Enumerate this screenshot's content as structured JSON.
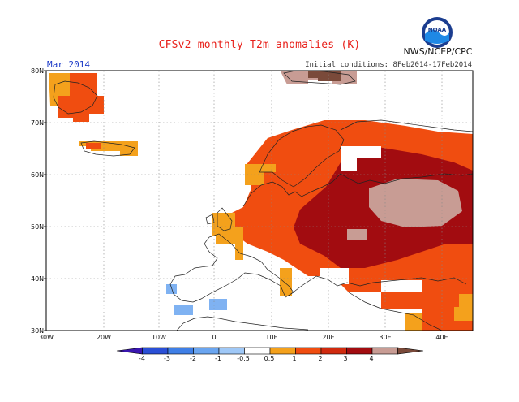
{
  "header": {
    "title": "CFSv2 monthly T2m anomalies (K)",
    "month": "Mar 2014",
    "initial_conditions": "Initial conditions: 8Feb2014-17Feb2014",
    "agency": "NWS/NCEP/CPC",
    "logo_text": "NOAA"
  },
  "axes": {
    "lat_labels": [
      "80N",
      "70N",
      "60N",
      "50N",
      "40N",
      "30N"
    ],
    "lon_labels": [
      "30W",
      "20W",
      "10W",
      "0",
      "10E",
      "20E",
      "30E",
      "40E"
    ]
  },
  "colorbar": {
    "tick_labels": [
      "-4",
      "-3",
      "-2",
      "-1",
      "-0.5",
      "0.5",
      "1",
      "2",
      "3",
      "4"
    ],
    "colors": [
      "#3a16b0",
      "#2a4fd6",
      "#3f7fe6",
      "#6aa5f0",
      "#9fc8f7",
      "#ffffff",
      "#f4a11c",
      "#f04d10",
      "#d02a0e",
      "#a20c10",
      "#c89c94",
      "#7a4a3a"
    ]
  },
  "palette": {
    "orange": "#f4a11c",
    "red": "#f04d10",
    "darkred": "#a20c10",
    "pink": "#c89c94",
    "brown": "#7a4a3a",
    "lightblue": "#7fb2f2",
    "title_color": "#e8201a",
    "month_color": "#1e3cc8"
  }
}
